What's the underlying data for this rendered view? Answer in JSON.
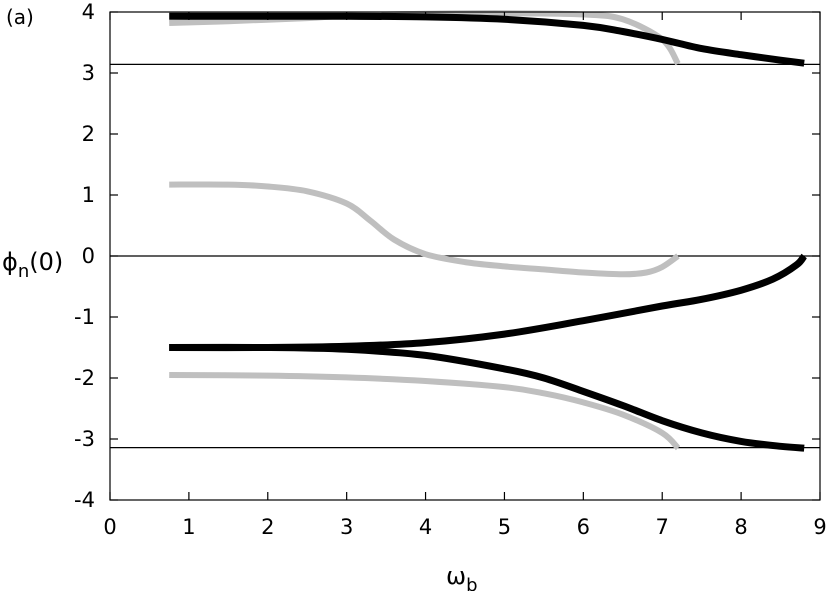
{
  "panel_label": "(a)",
  "chart_data": {
    "type": "line",
    "xlabel": "ω_b",
    "ylabel": "ϕ_n(0)",
    "xlim": [
      0,
      9
    ],
    "ylim": [
      -4,
      4
    ],
    "xticks": [
      0,
      1,
      2,
      3,
      4,
      5,
      6,
      7,
      8,
      9
    ],
    "yticks": [
      4,
      3,
      2,
      1,
      0,
      -1,
      -2,
      -3,
      -4
    ],
    "grid": false,
    "legend": "none",
    "reference_lines_y": [
      3.1416,
      0,
      -3.1416
    ],
    "colors": {
      "black_curve": "#000000",
      "gray_curve": "#bfbfbf",
      "axis": "#000000"
    },
    "series": [
      {
        "color": "gray",
        "x": [
          0.75,
          1.5,
          2.5,
          3.0,
          4.0,
          5.0,
          6.0,
          6.5,
          7.0,
          7.2
        ],
        "y": [
          3.82,
          3.85,
          3.9,
          3.94,
          3.97,
          3.98,
          3.96,
          3.88,
          3.55,
          3.15
        ]
      },
      {
        "color": "black",
        "x": [
          0.75,
          2.0,
          3.0,
          4.0,
          5.0,
          6.0,
          6.5,
          7.0,
          7.5,
          8.0,
          8.5,
          8.8
        ],
        "y": [
          3.93,
          3.93,
          3.93,
          3.92,
          3.88,
          3.78,
          3.68,
          3.55,
          3.4,
          3.3,
          3.21,
          3.16
        ]
      },
      {
        "color": "gray",
        "x": [
          0.75,
          1.5,
          2.0,
          2.5,
          3.0,
          3.3,
          3.6,
          4.0,
          4.5,
          5.0,
          5.5,
          6.0,
          6.5,
          6.8,
          7.0,
          7.2
        ],
        "y": [
          1.17,
          1.17,
          1.14,
          1.06,
          0.86,
          0.58,
          0.27,
          0.03,
          -0.1,
          -0.17,
          -0.22,
          -0.27,
          -0.3,
          -0.27,
          -0.18,
          0.0
        ]
      },
      {
        "color": "black",
        "x": [
          0.75,
          2.0,
          3.0,
          4.0,
          5.0,
          6.0,
          7.0,
          7.5,
          8.0,
          8.4,
          8.7,
          8.8
        ],
        "y": [
          -1.5,
          -1.5,
          -1.48,
          -1.42,
          -1.28,
          -1.06,
          -0.82,
          -0.71,
          -0.56,
          -0.38,
          -0.15,
          0.0
        ]
      },
      {
        "color": "gray",
        "x": [
          0.75,
          2.0,
          3.0,
          4.0,
          5.0,
          5.5,
          6.0,
          6.5,
          7.0,
          7.2
        ],
        "y": [
          -1.95,
          -1.96,
          -1.99,
          -2.05,
          -2.15,
          -2.25,
          -2.4,
          -2.6,
          -2.9,
          -3.15
        ]
      },
      {
        "color": "black",
        "x": [
          0.75,
          2.0,
          3.0,
          4.0,
          5.0,
          5.5,
          6.0,
          6.5,
          7.0,
          7.5,
          8.0,
          8.5,
          8.8
        ],
        "y": [
          -1.5,
          -1.5,
          -1.53,
          -1.63,
          -1.85,
          -2.0,
          -2.22,
          -2.45,
          -2.7,
          -2.9,
          -3.04,
          -3.12,
          -3.15
        ]
      }
    ]
  }
}
